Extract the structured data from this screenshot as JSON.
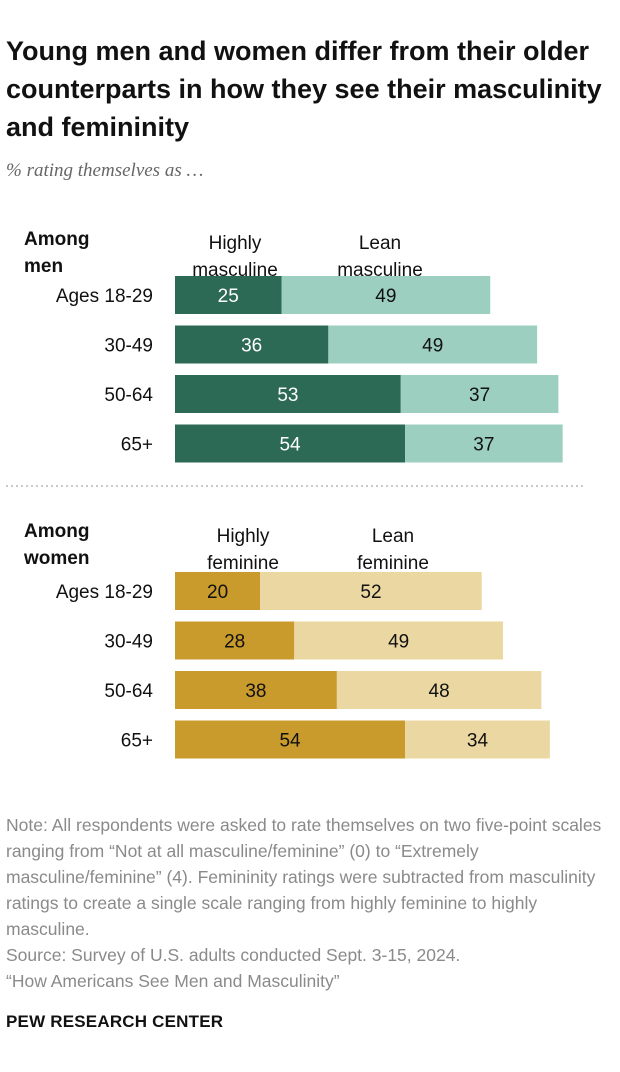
{
  "title": "Young men and women differ from their older counterparts in how they see their masculinity and femininity",
  "subtitle": "% rating themselves as …",
  "chart_data": [
    {
      "type": "bar",
      "stacked": true,
      "orientation": "horizontal",
      "group_label": [
        "Among",
        "men"
      ],
      "categories": [
        "Ages 18-29",
        "30-49",
        "50-64",
        "65+"
      ],
      "series": [
        {
          "name": "Highly masculine",
          "label_lines": [
            "Highly",
            "masculine"
          ],
          "color": "#2d6a55",
          "label_color": "#ffffff",
          "values": [
            25,
            36,
            53,
            54
          ]
        },
        {
          "name": "Lean masculine",
          "label_lines": [
            "Lean",
            "masculine"
          ],
          "color": "#9ccfc0",
          "label_color": "#111111",
          "values": [
            49,
            49,
            37,
            37
          ]
        }
      ]
    },
    {
      "type": "bar",
      "stacked": true,
      "orientation": "horizontal",
      "group_label": [
        "Among",
        "women"
      ],
      "categories": [
        "Ages 18-29",
        "30-49",
        "50-64",
        "65+"
      ],
      "series": [
        {
          "name": "Highly feminine",
          "label_lines": [
            "Highly",
            "feminine"
          ],
          "color": "#c99a2c",
          "label_color": "#111111",
          "values": [
            20,
            28,
            38,
            54
          ]
        },
        {
          "name": "Lean feminine",
          "label_lines": [
            "Lean",
            "feminine"
          ],
          "color": "#ebd7a2",
          "label_color": "#111111",
          "values": [
            52,
            49,
            48,
            34
          ]
        }
      ]
    }
  ],
  "note": [
    "Note: All respondents were asked to rate themselves on two five-point scales ranging from “Not at all masculine/feminine” (0) to “Extremely masculine/feminine” (4). Femininity ratings were subtracted from masculinity ratings to create a single scale ranging from highly feminine to highly masculine.",
    "Source: Survey of U.S. adults conducted Sept. 3-15, 2024.",
    "“How Americans See Men and Masculinity”"
  ],
  "brand": "PEW RESEARCH CENTER"
}
